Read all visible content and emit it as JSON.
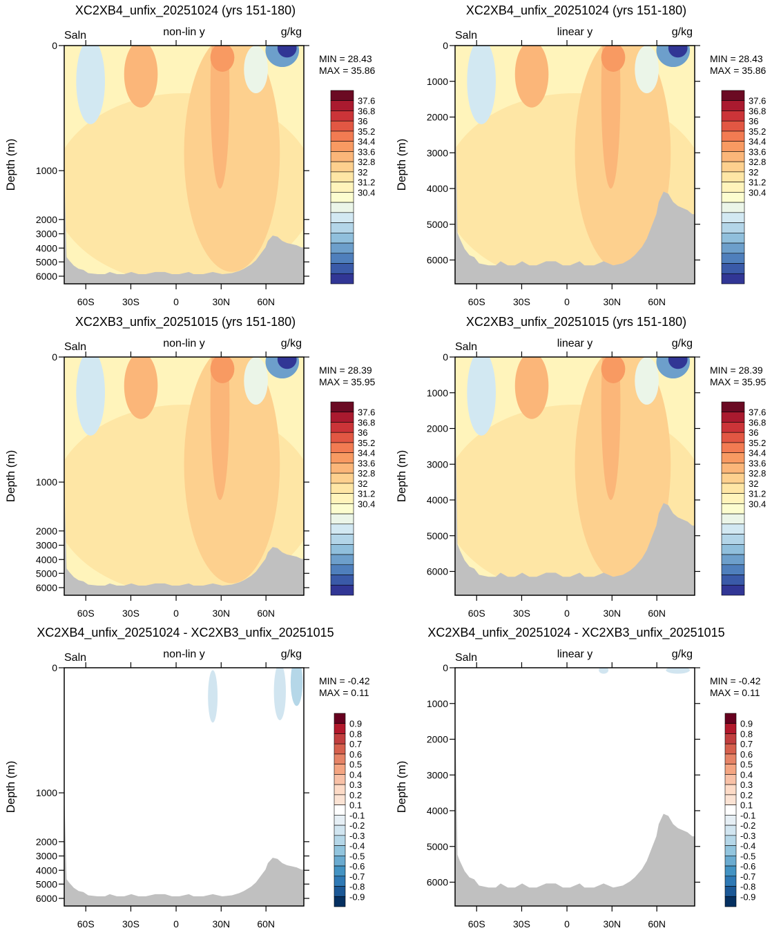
{
  "colors": {
    "land": "#c0c0c0",
    "abs_scale": [
      "#313695",
      "#3a5aa8",
      "#4f7fbc",
      "#6d9fcb",
      "#90bfdc",
      "#b3d5e8",
      "#d2e8f2",
      "#ebf5e8",
      "#fcfdcf",
      "#fff4bb",
      "#fee6a5",
      "#fdd08e",
      "#fbb679",
      "#f89a62",
      "#f27b52",
      "#e25743",
      "#cb3438",
      "#aa1a2f",
      "#6b0a23"
    ],
    "diff_scale": [
      "#053061",
      "#1b5896",
      "#2e79b5",
      "#4393c3",
      "#6aabd0",
      "#92c5de",
      "#b5d7e8",
      "#d1e5f0",
      "#e6eff5",
      "#ffffff",
      "#fbe3d4",
      "#fddbc7",
      "#f8c1a7",
      "#f4a582",
      "#e68467",
      "#d6604d",
      "#c13e3e",
      "#b2182b",
      "#67001f"
    ]
  },
  "chart_data": [
    {
      "type": "heatmap",
      "title": "XC2XB4_unfix_20251024 (yrs 151-180)",
      "left_label": "Saln",
      "center_label": "non-lin y",
      "right_label": "g/kg",
      "ylabel": "Depth (m)",
      "y_scale": "non-linear",
      "yticks": [
        "0",
        "1000",
        "2000",
        "3000",
        "4000",
        "5000",
        "6000"
      ],
      "xticks": [
        "60S",
        "30S",
        "0",
        "30N",
        "60N"
      ],
      "min_text": "MIN =  28.43",
      "max_text": "MAX =  35.86",
      "colorbar": [
        "37.6",
        "36.8",
        "36",
        "35.2",
        "34.4",
        "33.6",
        "32.8",
        "32",
        "31.2",
        "30.4"
      ],
      "colorbar_kind": "abs",
      "field": "saln"
    },
    {
      "type": "heatmap",
      "title": "XC2XB4_unfix_20251024 (yrs 151-180)",
      "left_label": "Saln",
      "center_label": "linear y",
      "right_label": "g/kg",
      "ylabel": "Depth (m)",
      "y_scale": "linear",
      "yticks": [
        "0",
        "1000",
        "2000",
        "3000",
        "4000",
        "5000",
        "6000"
      ],
      "xticks": [
        "60S",
        "30S",
        "0",
        "30N",
        "60N"
      ],
      "min_text": "MIN =  28.43",
      "max_text": "MAX =  35.86",
      "colorbar": [
        "37.6",
        "36.8",
        "36",
        "35.2",
        "34.4",
        "33.6",
        "32.8",
        "32",
        "31.2",
        "30.4"
      ],
      "colorbar_kind": "abs",
      "field": "saln"
    },
    {
      "type": "heatmap",
      "title": "XC2XB3_unfix_20251015 (yrs 151-180)",
      "left_label": "Saln",
      "center_label": "non-lin y",
      "right_label": "g/kg",
      "ylabel": "Depth (m)",
      "y_scale": "non-linear",
      "yticks": [
        "0",
        "1000",
        "2000",
        "3000",
        "4000",
        "5000",
        "6000"
      ],
      "xticks": [
        "60S",
        "30S",
        "0",
        "30N",
        "60N"
      ],
      "min_text": "MIN =  28.39",
      "max_text": "MAX =  35.95",
      "colorbar": [
        "37.6",
        "36.8",
        "36",
        "35.2",
        "34.4",
        "33.6",
        "32.8",
        "32",
        "31.2",
        "30.4"
      ],
      "colorbar_kind": "abs",
      "field": "saln"
    },
    {
      "type": "heatmap",
      "title": "XC2XB3_unfix_20251015 (yrs 151-180)",
      "left_label": "Saln",
      "center_label": "linear y",
      "right_label": "g/kg",
      "ylabel": "Depth (m)",
      "y_scale": "linear",
      "yticks": [
        "0",
        "1000",
        "2000",
        "3000",
        "4000",
        "5000",
        "6000"
      ],
      "xticks": [
        "60S",
        "30S",
        "0",
        "30N",
        "60N"
      ],
      "min_text": "MIN =  28.39",
      "max_text": "MAX =  35.95",
      "colorbar": [
        "37.6",
        "36.8",
        "36",
        "35.2",
        "34.4",
        "33.6",
        "32.8",
        "32",
        "31.2",
        "30.4"
      ],
      "colorbar_kind": "abs",
      "field": "saln"
    },
    {
      "type": "heatmap",
      "title": "XC2XB4_unfix_20251024 - XC2XB3_unfix_20251015",
      "left_label": "Saln",
      "center_label": "non-lin y",
      "right_label": "g/kg",
      "ylabel": "Depth (m)",
      "y_scale": "non-linear",
      "yticks": [
        "0",
        "1000",
        "2000",
        "3000",
        "4000",
        "5000",
        "6000"
      ],
      "xticks": [
        "60S",
        "30S",
        "0",
        "30N",
        "60N"
      ],
      "min_text": "MIN =  -0.42",
      "max_text": "MAX =   0.11",
      "colorbar": [
        "0.9",
        "0.8",
        "0.7",
        "0.6",
        "0.5",
        "0.4",
        "0.3",
        "0.2",
        "0.1",
        "-0.1",
        "-0.2",
        "-0.3",
        "-0.4",
        "-0.5",
        "-0.6",
        "-0.7",
        "-0.8",
        "-0.9"
      ],
      "colorbar_kind": "diff",
      "field": "diff"
    },
    {
      "type": "heatmap",
      "title": "XC2XB4_unfix_20251024 - XC2XB3_unfix_20251015",
      "left_label": "Saln",
      "center_label": "linear y",
      "right_label": "g/kg",
      "ylabel": "Depth (m)",
      "y_scale": "linear",
      "yticks": [
        "0",
        "1000",
        "2000",
        "3000",
        "4000",
        "5000",
        "6000"
      ],
      "xticks": [
        "60S",
        "30S",
        "0",
        "30N",
        "60N"
      ],
      "min_text": "MIN =  -0.42",
      "max_text": "MAX =   0.11",
      "colorbar": [
        "0.9",
        "0.8",
        "0.7",
        "0.6",
        "0.5",
        "0.4",
        "0.3",
        "0.2",
        "0.1",
        "-0.1",
        "-0.2",
        "-0.3",
        "-0.4",
        "-0.5",
        "-0.6",
        "-0.7",
        "-0.8",
        "-0.9"
      ],
      "colorbar_kind": "diff",
      "field": "diff"
    }
  ]
}
